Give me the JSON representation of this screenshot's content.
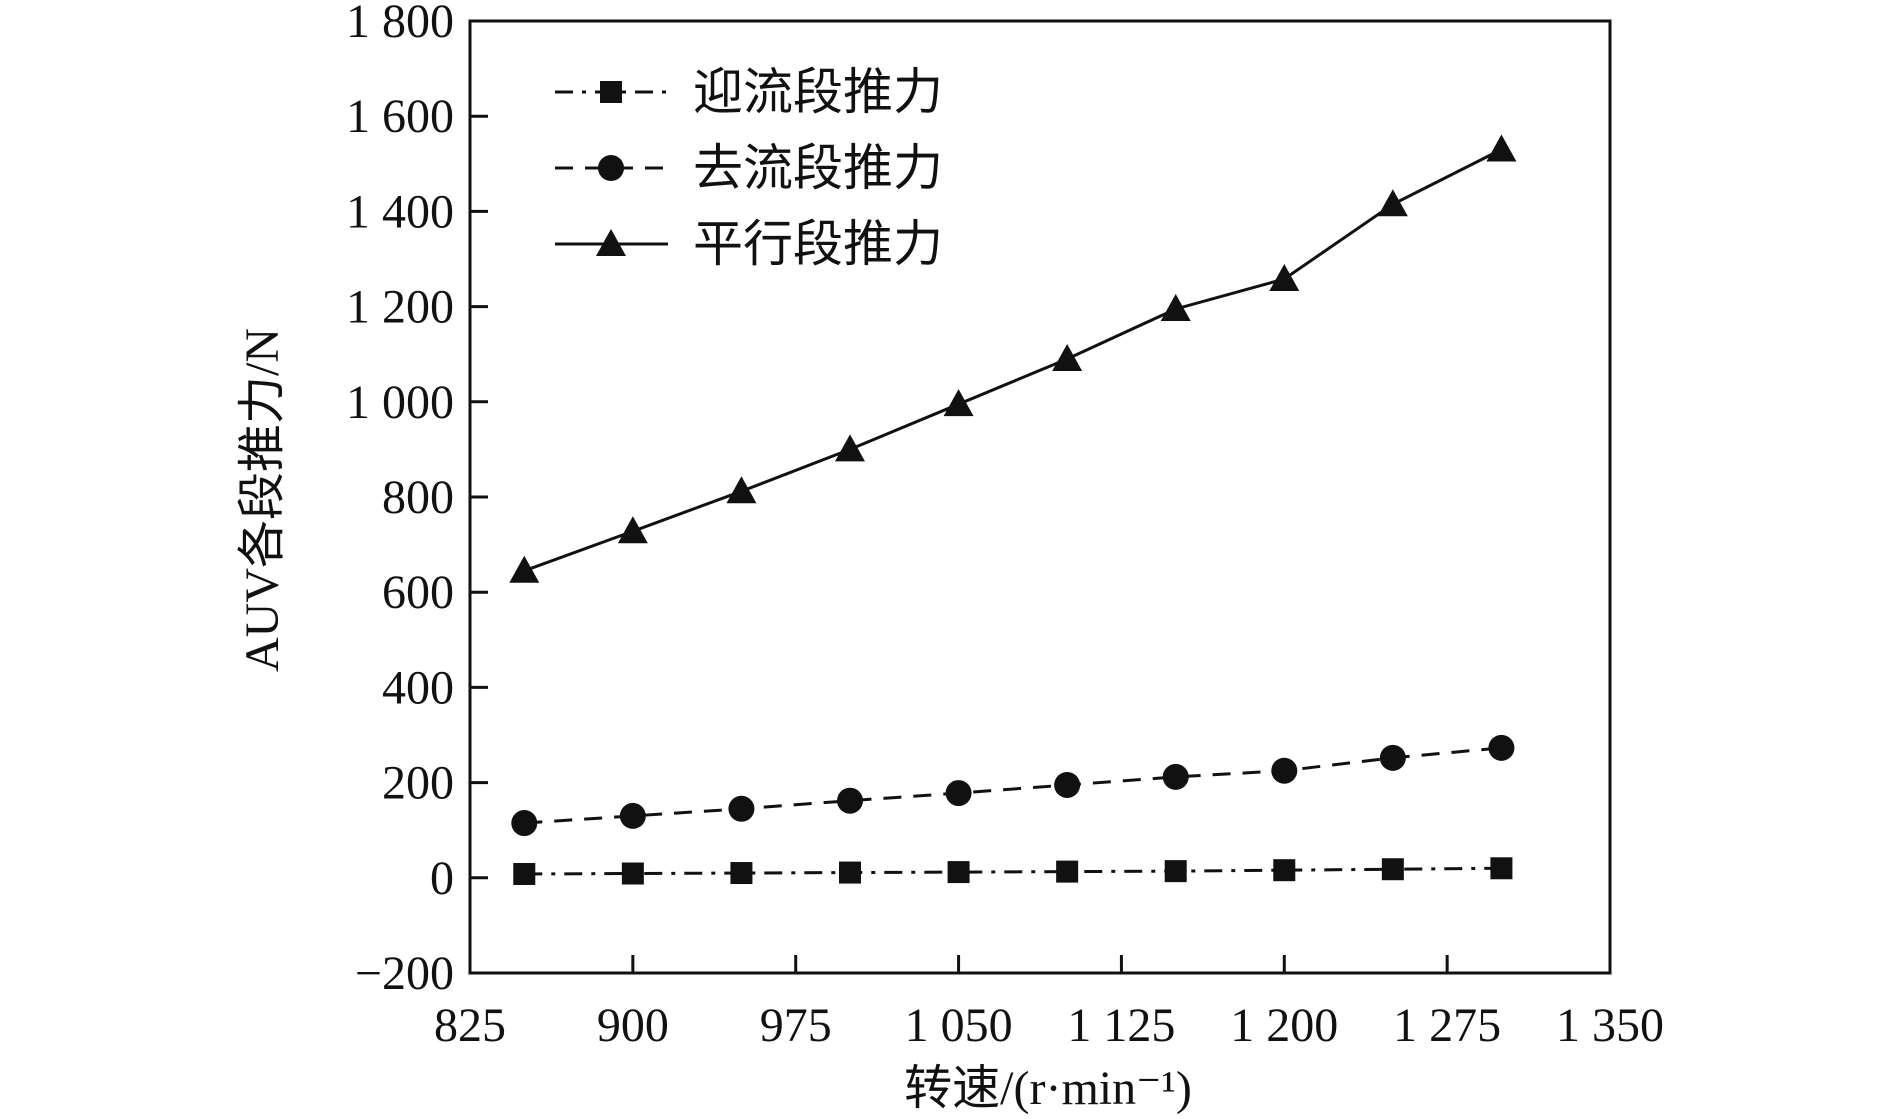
{
  "chart_data": {
    "type": "line",
    "title": "",
    "xlabel": "转速/(r·min⁻¹)",
    "ylabel": "AUV各段推力/N",
    "xlim": [
      825,
      1350
    ],
    "ylim": [
      -200,
      1800
    ],
    "xticks": [
      825,
      900,
      975,
      1050,
      1125,
      1200,
      1275,
      1350
    ],
    "xtick_labels": [
      "825",
      "900",
      "975",
      "1 050",
      "1 125",
      "1 200",
      "1 275",
      "1 350"
    ],
    "yticks": [
      -200,
      0,
      200,
      400,
      600,
      800,
      1000,
      1200,
      1400,
      1600,
      1800
    ],
    "ytick_labels": [
      "−200",
      "0",
      "200",
      "400",
      "600",
      "800",
      "1 000",
      "1 200",
      "1 400",
      "1 600",
      "1 800"
    ],
    "grid": false,
    "legend_position": "top-left",
    "x": [
      850,
      900,
      950,
      1000,
      1050,
      1100,
      1150,
      1200,
      1250,
      1300
    ],
    "series": [
      {
        "name": "迎流段推力",
        "marker": "square",
        "line_style": "dash-dot",
        "color": "#111111",
        "values": [
          8,
          9,
          10,
          11,
          12,
          13,
          14,
          16,
          18,
          20
        ]
      },
      {
        "name": "去流段推力",
        "marker": "circle",
        "line_style": "dashed",
        "color": "#111111",
        "values": [
          115,
          130,
          145,
          162,
          178,
          195,
          212,
          225,
          252,
          273
        ]
      },
      {
        "name": "平行段推力",
        "marker": "triangle",
        "line_style": "solid",
        "color": "#111111",
        "values": [
          645,
          728,
          812,
          900,
          995,
          1090,
          1195,
          1258,
          1415,
          1530
        ]
      }
    ]
  }
}
